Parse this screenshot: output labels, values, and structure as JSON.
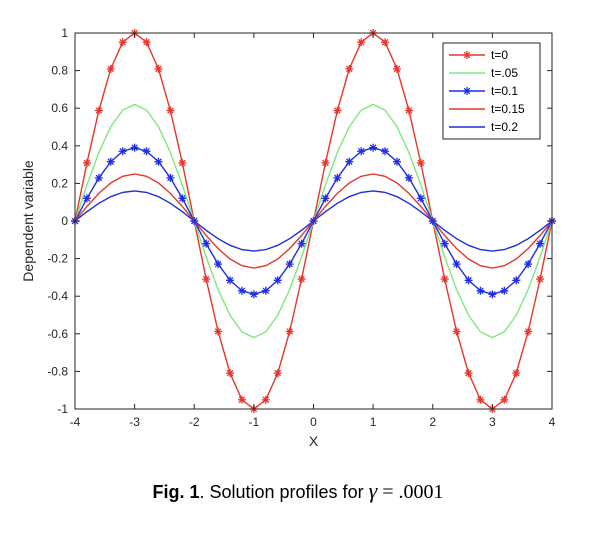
{
  "chart_data": {
    "type": "line",
    "xlabel": "X",
    "ylabel": "Dependent variable",
    "xlim": [
      -4,
      4
    ],
    "ylim": [
      -1,
      1
    ],
    "xticks": [
      "-4",
      "-3",
      "-2",
      "-1",
      "0",
      "1",
      "2",
      "3",
      "4"
    ],
    "yticks": [
      "-1",
      "-0.8",
      "-0.6",
      "-0.4",
      "-0.2",
      "0",
      "0.2",
      "0.4",
      "0.6",
      "0.8",
      "1"
    ],
    "grid": false,
    "legend_position": "top-right",
    "function": "y = A * sin(pi * x / 2)",
    "x": [
      -4.0,
      -3.8,
      -3.6,
      -3.4,
      -3.2,
      -3.0,
      -2.8,
      -2.6,
      -2.4,
      -2.2,
      -2.0,
      -1.8,
      -1.6,
      -1.4,
      -1.2,
      -1.0,
      -0.8,
      -0.6,
      -0.4,
      -0.2,
      0.0,
      0.2,
      0.4,
      0.6,
      0.8,
      1.0,
      1.2,
      1.4,
      1.6,
      1.8,
      2.0,
      2.2,
      2.4,
      2.6,
      2.8,
      3.0,
      3.2,
      3.4,
      3.6,
      3.8,
      4.0
    ],
    "series": [
      {
        "name": "t=0",
        "amplitude": 1.0,
        "color": "#e8352b",
        "marker": "asterisk"
      },
      {
        "name": "t=.05",
        "amplitude": 0.62,
        "color": "#7de87d",
        "marker": "none"
      },
      {
        "name": "t=0.1",
        "amplitude": 0.39,
        "color": "#1f2ee6",
        "marker": "asterisk"
      },
      {
        "name": "t=0.15",
        "amplitude": 0.25,
        "color": "#e03a2e",
        "marker": "none"
      },
      {
        "name": "t=0.2",
        "amplitude": 0.16,
        "color": "#1a2fd4",
        "marker": "none"
      }
    ]
  },
  "caption": {
    "fig_label": "Fig. 1",
    "text": ". Solution profiles for ",
    "symbol": "γ",
    "equals": " = ",
    "value": ".0001"
  }
}
